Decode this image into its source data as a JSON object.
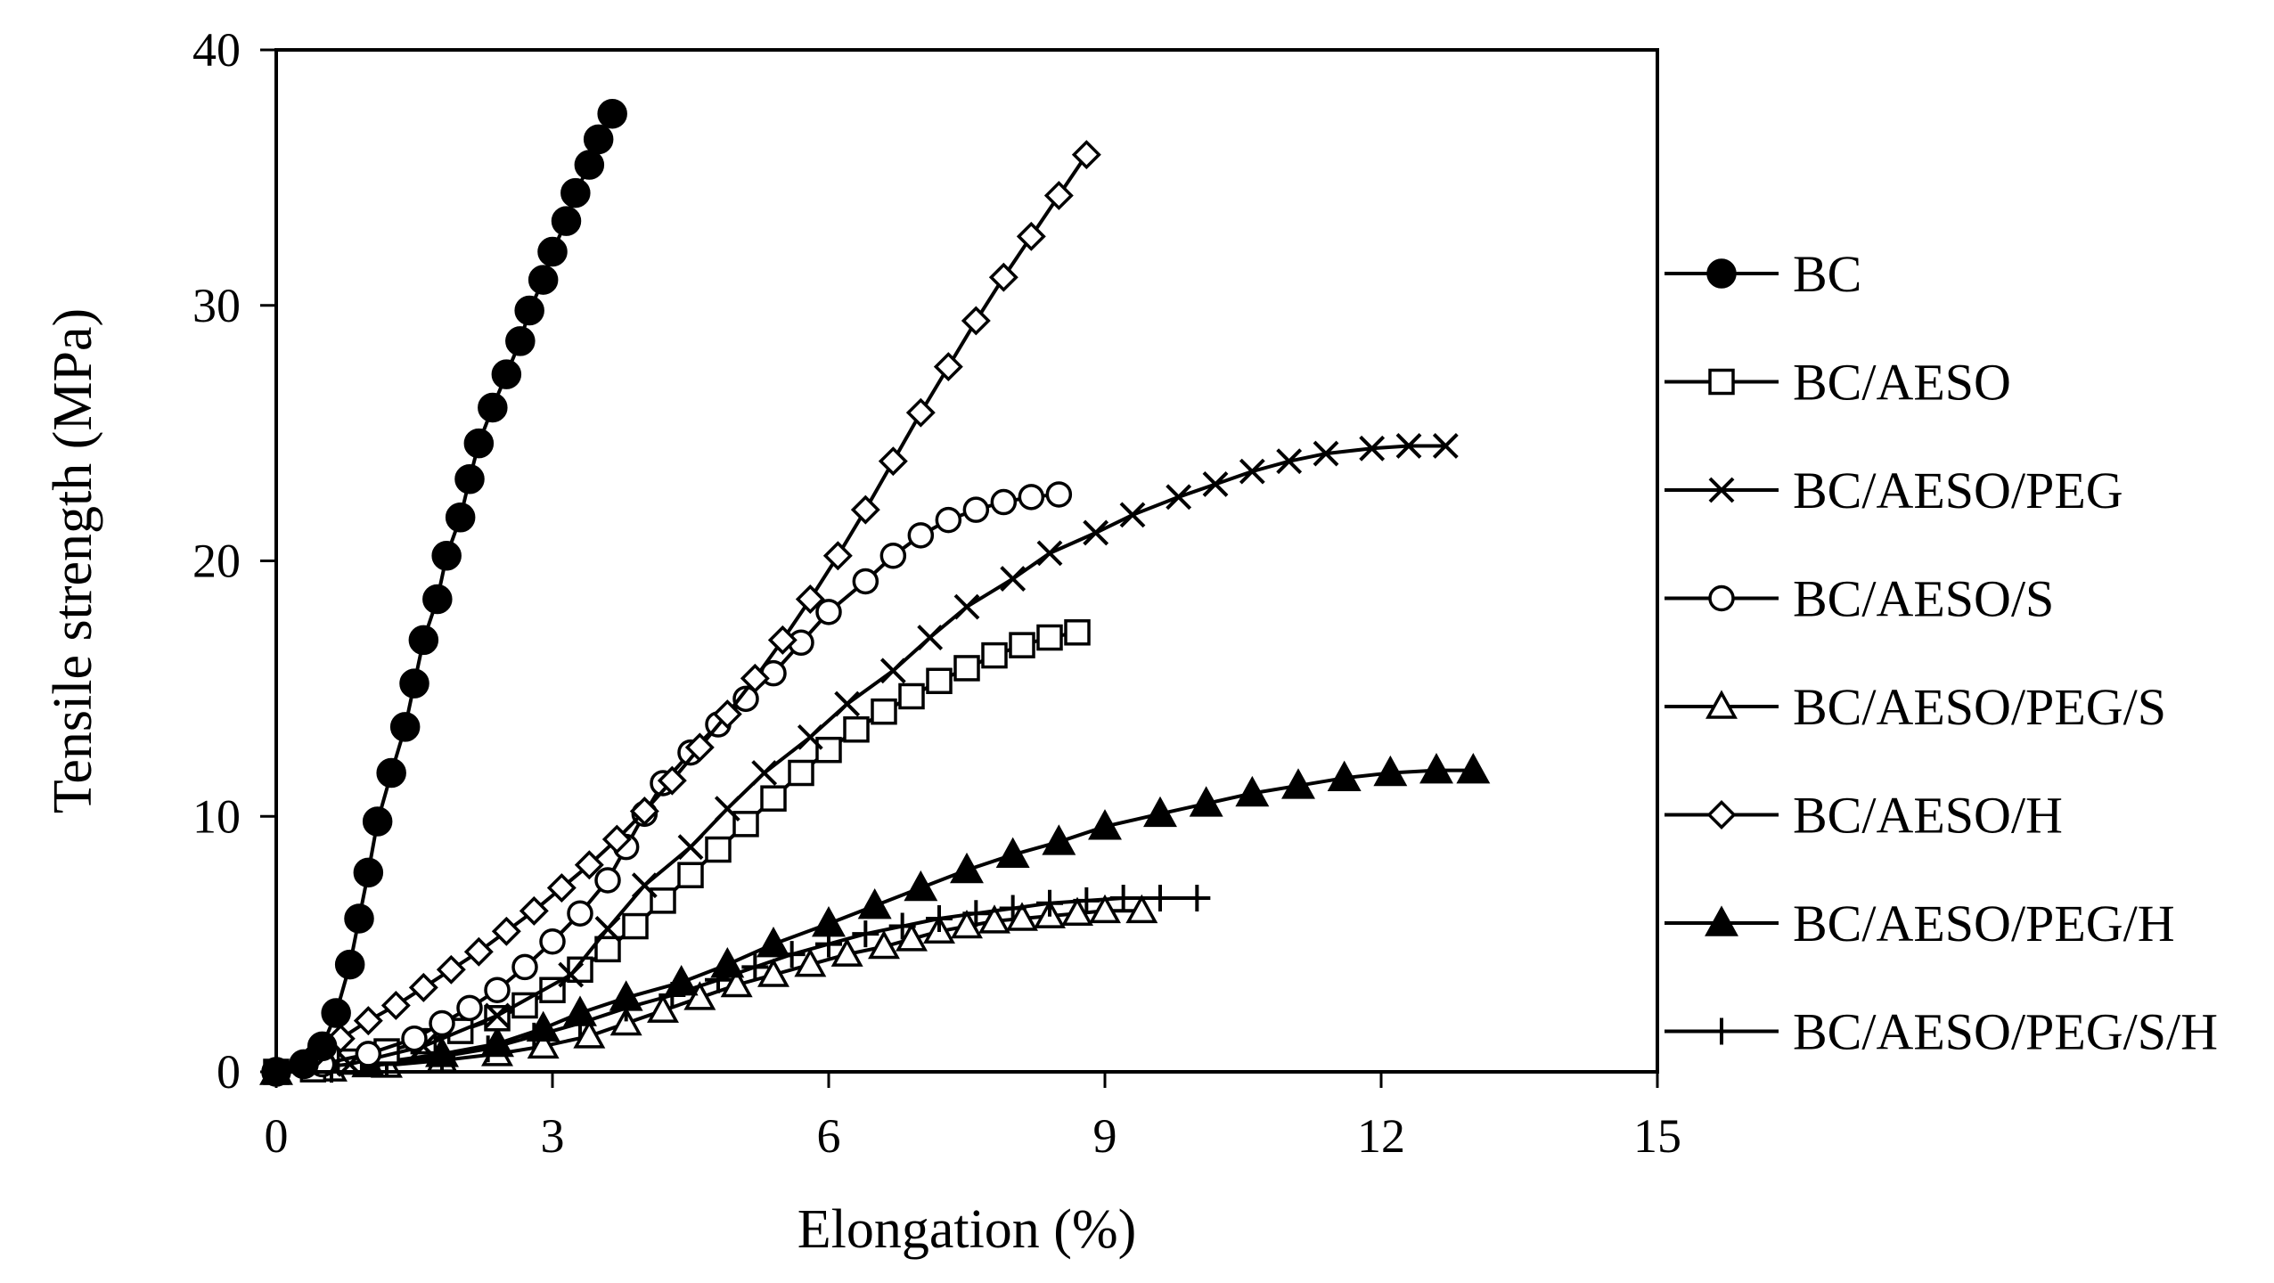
{
  "chart_data": {
    "type": "line",
    "title": "",
    "xlabel": "Elongation (%)",
    "ylabel": "Tensile strength (MPa)",
    "xlim": [
      0,
      15
    ],
    "ylim": [
      0,
      40
    ],
    "x_ticks": [
      0,
      3,
      6,
      9,
      12,
      15
    ],
    "y_ticks": [
      0,
      10,
      20,
      30,
      40
    ],
    "x_tick_labels": [
      "0",
      "3",
      "6",
      "9",
      "12",
      "15"
    ],
    "y_tick_labels": [
      "0",
      "10",
      "20",
      "30",
      "40"
    ],
    "grid": false,
    "legend_position": "right",
    "series": [
      {
        "name": "BC",
        "marker": "filled-circle",
        "points": [
          [
            0,
            0
          ],
          [
            0.3,
            0.3
          ],
          [
            0.5,
            1.0
          ],
          [
            0.65,
            2.3
          ],
          [
            0.8,
            4.2
          ],
          [
            0.9,
            6.0
          ],
          [
            1.0,
            7.8
          ],
          [
            1.1,
            9.8
          ],
          [
            1.25,
            11.7
          ],
          [
            1.4,
            13.5
          ],
          [
            1.5,
            15.2
          ],
          [
            1.6,
            16.9
          ],
          [
            1.75,
            18.5
          ],
          [
            1.85,
            20.2
          ],
          [
            2.0,
            21.7
          ],
          [
            2.1,
            23.2
          ],
          [
            2.2,
            24.6
          ],
          [
            2.35,
            26.0
          ],
          [
            2.5,
            27.3
          ],
          [
            2.65,
            28.6
          ],
          [
            2.75,
            29.8
          ],
          [
            2.9,
            31.0
          ],
          [
            3.0,
            32.1
          ],
          [
            3.15,
            33.3
          ],
          [
            3.25,
            34.4
          ],
          [
            3.4,
            35.5
          ],
          [
            3.5,
            36.5
          ],
          [
            3.65,
            37.5
          ]
        ]
      },
      {
        "name": "BC/AESO",
        "marker": "open-square",
        "points": [
          [
            0,
            0
          ],
          [
            0.4,
            0.1
          ],
          [
            0.8,
            0.4
          ],
          [
            1.2,
            0.8
          ],
          [
            1.6,
            1.2
          ],
          [
            2.0,
            1.6
          ],
          [
            2.4,
            2.1
          ],
          [
            2.7,
            2.6
          ],
          [
            3.0,
            3.2
          ],
          [
            3.3,
            4.0
          ],
          [
            3.6,
            4.8
          ],
          [
            3.9,
            5.7
          ],
          [
            4.2,
            6.7
          ],
          [
            4.5,
            7.7
          ],
          [
            4.8,
            8.7
          ],
          [
            5.1,
            9.7
          ],
          [
            5.4,
            10.7
          ],
          [
            5.7,
            11.7
          ],
          [
            6.0,
            12.6
          ],
          [
            6.3,
            13.4
          ],
          [
            6.6,
            14.1
          ],
          [
            6.9,
            14.7
          ],
          [
            7.2,
            15.3
          ],
          [
            7.5,
            15.8
          ],
          [
            7.8,
            16.3
          ],
          [
            8.1,
            16.7
          ],
          [
            8.4,
            17.0
          ],
          [
            8.7,
            17.2
          ]
        ]
      },
      {
        "name": "BC/AESO/PEG",
        "marker": "x",
        "points": [
          [
            0,
            0
          ],
          [
            0.8,
            0.3
          ],
          [
            1.6,
            1.0
          ],
          [
            2.4,
            2.2
          ],
          [
            3.2,
            3.8
          ],
          [
            3.6,
            5.6
          ],
          [
            4.0,
            7.3
          ],
          [
            4.5,
            8.8
          ],
          [
            4.9,
            10.3
          ],
          [
            5.3,
            11.7
          ],
          [
            5.8,
            13.1
          ],
          [
            6.2,
            14.4
          ],
          [
            6.7,
            15.7
          ],
          [
            7.1,
            17.0
          ],
          [
            7.5,
            18.2
          ],
          [
            8.0,
            19.3
          ],
          [
            8.4,
            20.3
          ],
          [
            8.9,
            21.1
          ],
          [
            9.3,
            21.8
          ],
          [
            9.8,
            22.5
          ],
          [
            10.2,
            23.0
          ],
          [
            10.6,
            23.5
          ],
          [
            11.0,
            23.9
          ],
          [
            11.4,
            24.2
          ],
          [
            11.9,
            24.4
          ],
          [
            12.3,
            24.5
          ],
          [
            12.7,
            24.5
          ]
        ]
      },
      {
        "name": "BC/AESO/S",
        "marker": "open-circle",
        "points": [
          [
            0,
            0
          ],
          [
            0.5,
            0.3
          ],
          [
            1.0,
            0.7
          ],
          [
            1.5,
            1.3
          ],
          [
            1.8,
            1.9
          ],
          [
            2.1,
            2.5
          ],
          [
            2.4,
            3.2
          ],
          [
            2.7,
            4.1
          ],
          [
            3.0,
            5.1
          ],
          [
            3.3,
            6.2
          ],
          [
            3.6,
            7.5
          ],
          [
            3.8,
            8.8
          ],
          [
            4.0,
            10.1
          ],
          [
            4.2,
            11.3
          ],
          [
            4.5,
            12.5
          ],
          [
            4.8,
            13.6
          ],
          [
            5.1,
            14.6
          ],
          [
            5.4,
            15.6
          ],
          [
            5.7,
            16.8
          ],
          [
            6.0,
            18.0
          ],
          [
            6.4,
            19.2
          ],
          [
            6.7,
            20.2
          ],
          [
            7.0,
            21.0
          ],
          [
            7.3,
            21.6
          ],
          [
            7.6,
            22.0
          ],
          [
            7.9,
            22.3
          ],
          [
            8.2,
            22.5
          ],
          [
            8.5,
            22.6
          ]
        ]
      },
      {
        "name": "BC/AESO/PEG/S",
        "marker": "open-triangle",
        "points": [
          [
            0,
            0
          ],
          [
            0.6,
            0.1
          ],
          [
            1.2,
            0.25
          ],
          [
            1.8,
            0.45
          ],
          [
            2.4,
            0.7
          ],
          [
            2.9,
            1.0
          ],
          [
            3.4,
            1.4
          ],
          [
            3.8,
            1.9
          ],
          [
            4.2,
            2.4
          ],
          [
            4.6,
            2.9
          ],
          [
            5.0,
            3.4
          ],
          [
            5.4,
            3.8
          ],
          [
            5.8,
            4.2
          ],
          [
            6.2,
            4.6
          ],
          [
            6.6,
            4.9
          ],
          [
            6.9,
            5.2
          ],
          [
            7.2,
            5.5
          ],
          [
            7.5,
            5.7
          ],
          [
            7.8,
            5.9
          ],
          [
            8.1,
            6.0
          ],
          [
            8.4,
            6.1
          ],
          [
            8.7,
            6.2
          ],
          [
            9.0,
            6.3
          ],
          [
            9.4,
            6.3
          ]
        ]
      },
      {
        "name": "BC/AESO/H",
        "marker": "open-diamond",
        "points": [
          [
            0,
            0
          ],
          [
            0.4,
            0.6
          ],
          [
            0.7,
            1.3
          ],
          [
            1.0,
            2.0
          ],
          [
            1.3,
            2.6
          ],
          [
            1.6,
            3.3
          ],
          [
            1.9,
            4.0
          ],
          [
            2.2,
            4.7
          ],
          [
            2.5,
            5.5
          ],
          [
            2.8,
            6.3
          ],
          [
            3.1,
            7.2
          ],
          [
            3.4,
            8.1
          ],
          [
            3.7,
            9.1
          ],
          [
            4.0,
            10.2
          ],
          [
            4.3,
            11.4
          ],
          [
            4.6,
            12.7
          ],
          [
            4.9,
            14.0
          ],
          [
            5.2,
            15.4
          ],
          [
            5.5,
            16.9
          ],
          [
            5.8,
            18.5
          ],
          [
            6.1,
            20.2
          ],
          [
            6.4,
            22.0
          ],
          [
            6.7,
            23.9
          ],
          [
            7.0,
            25.8
          ],
          [
            7.3,
            27.6
          ],
          [
            7.6,
            29.4
          ],
          [
            7.9,
            31.1
          ],
          [
            8.2,
            32.7
          ],
          [
            8.5,
            34.3
          ],
          [
            8.8,
            35.9
          ]
        ]
      },
      {
        "name": "BC/AESO/PEG/H",
        "marker": "filled-triangle",
        "points": [
          [
            0,
            0
          ],
          [
            1.0,
            0.3
          ],
          [
            1.8,
            0.7
          ],
          [
            2.4,
            1.1
          ],
          [
            2.9,
            1.7
          ],
          [
            3.3,
            2.3
          ],
          [
            3.8,
            2.9
          ],
          [
            4.4,
            3.5
          ],
          [
            4.9,
            4.2
          ],
          [
            5.4,
            5.0
          ],
          [
            6.0,
            5.8
          ],
          [
            6.5,
            6.5
          ],
          [
            7.0,
            7.2
          ],
          [
            7.5,
            7.9
          ],
          [
            8.0,
            8.5
          ],
          [
            8.5,
            9.0
          ],
          [
            9.0,
            9.6
          ],
          [
            9.6,
            10.1
          ],
          [
            10.1,
            10.5
          ],
          [
            10.6,
            10.9
          ],
          [
            11.1,
            11.2
          ],
          [
            11.6,
            11.5
          ],
          [
            12.1,
            11.7
          ],
          [
            12.6,
            11.8
          ],
          [
            13.0,
            11.8
          ]
        ]
      },
      {
        "name": "BC/AESO/PEG/S/H",
        "marker": "plus",
        "points": [
          [
            0,
            0
          ],
          [
            0.6,
            0.1
          ],
          [
            1.2,
            0.3
          ],
          [
            1.8,
            0.6
          ],
          [
            2.3,
            0.9
          ],
          [
            2.8,
            1.4
          ],
          [
            3.3,
            1.9
          ],
          [
            3.8,
            2.5
          ],
          [
            4.3,
            3.0
          ],
          [
            4.8,
            3.6
          ],
          [
            5.2,
            4.1
          ],
          [
            5.6,
            4.6
          ],
          [
            6.0,
            5.0
          ],
          [
            6.4,
            5.4
          ],
          [
            6.8,
            5.7
          ],
          [
            7.2,
            6.0
          ],
          [
            7.6,
            6.2
          ],
          [
            8.0,
            6.4
          ],
          [
            8.4,
            6.6
          ],
          [
            8.8,
            6.7
          ],
          [
            9.2,
            6.8
          ],
          [
            9.6,
            6.8
          ],
          [
            10.0,
            6.8
          ]
        ]
      }
    ]
  }
}
